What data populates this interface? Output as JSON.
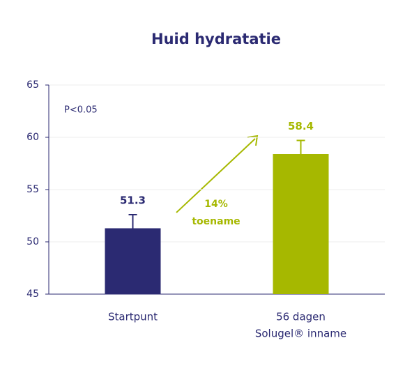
{
  "chart_data": {
    "type": "bar",
    "title": "Huid hydratatie",
    "categories": [
      [
        "Startpunt"
      ],
      [
        "56 dagen",
        "Solugel® inname"
      ]
    ],
    "values": [
      51.3,
      58.4
    ],
    "errors": [
      1.3,
      1.3
    ],
    "colors": [
      "#2b2a72",
      "#a6b800"
    ],
    "ylim": [
      45,
      65
    ],
    "yticks": [
      45,
      50,
      55,
      60,
      65
    ],
    "grid": true,
    "annotations": [
      "P<0.05",
      [
        "14%",
        "toename"
      ]
    ]
  }
}
